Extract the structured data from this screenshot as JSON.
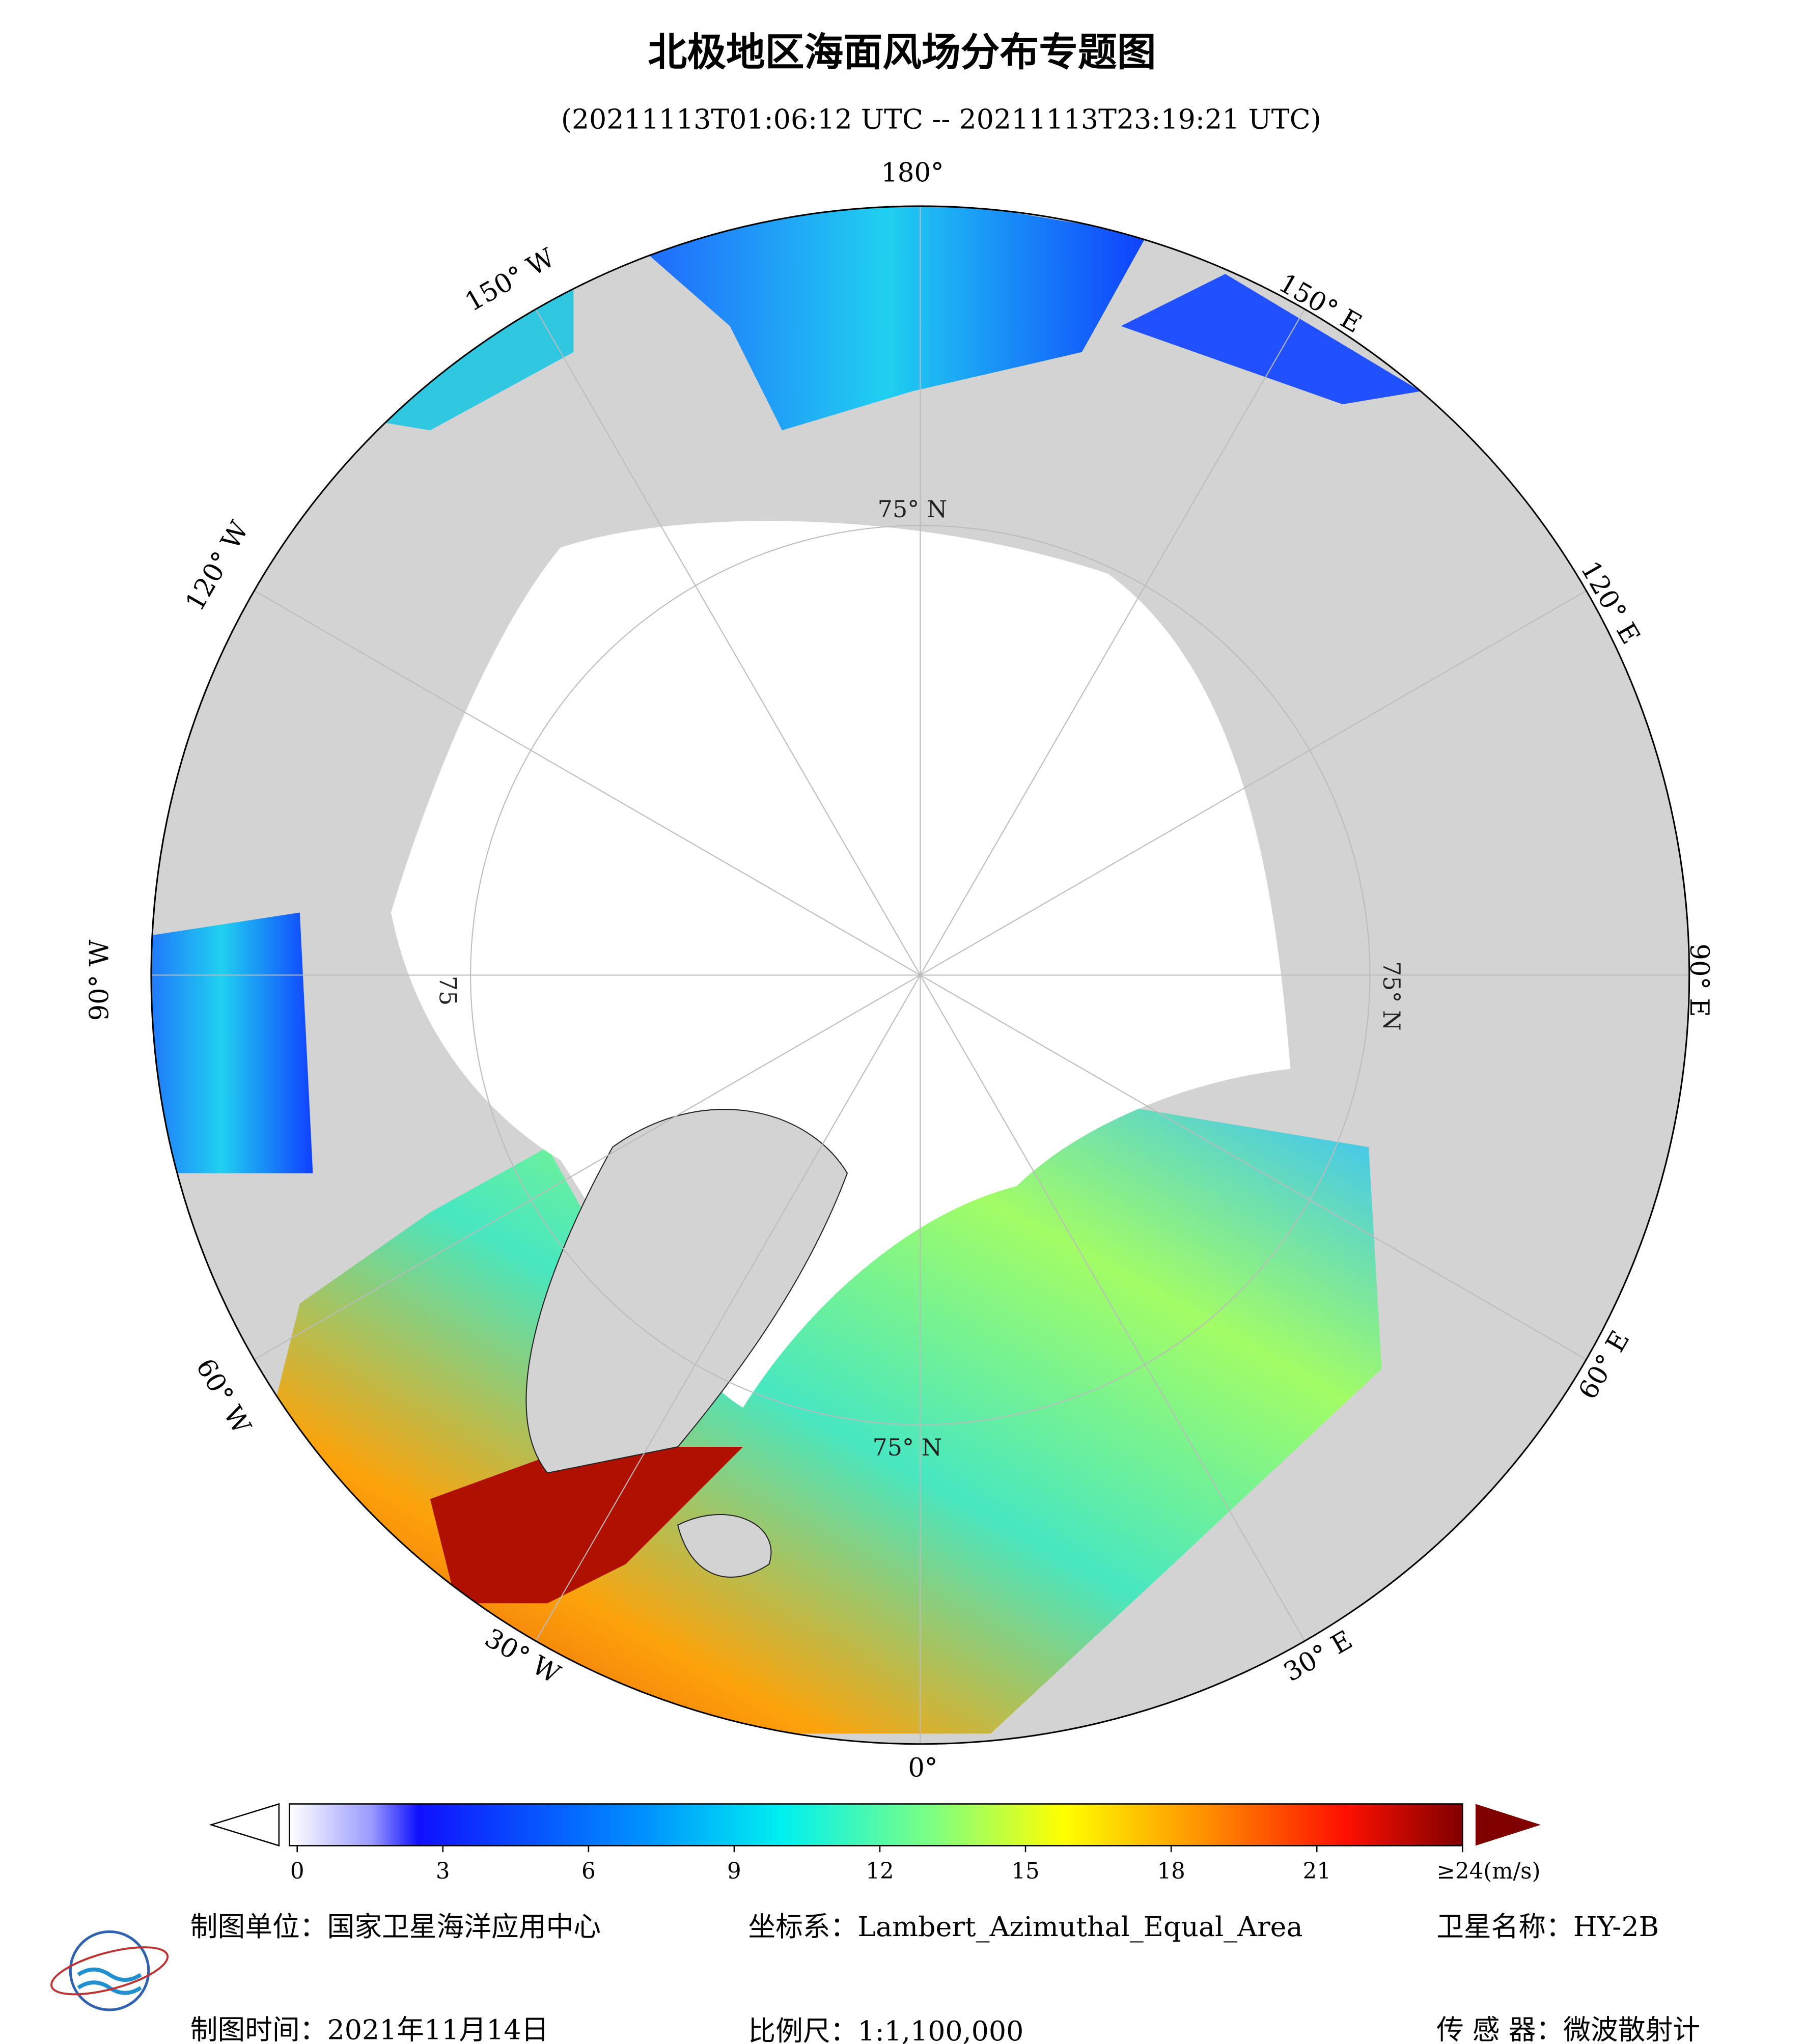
{
  "header": {
    "title": "北极地区海面风场分布专题图",
    "subtitle": "(20211113T01:06:12 UTC -- 20211113T23:19:21 UTC)"
  },
  "map": {
    "longitude_labels": [
      "180°",
      "150° E",
      "120° E",
      "90° E",
      "60° E",
      "30° E",
      "0°",
      "30° W",
      "60° W",
      "90° W",
      "120° W",
      "150° W"
    ],
    "latitude_labels": [
      "75° N",
      "75° N",
      "75° N",
      "75"
    ]
  },
  "colorbar": {
    "lim": [
      0,
      24
    ],
    "ticks": [
      0,
      3,
      6,
      9,
      12,
      15,
      18,
      21,
      {
        "value": 24,
        "label": "≥24(m/s)"
      }
    ]
  },
  "footer": {
    "unit": "制图单位：国家卫星海洋应用中心",
    "projection": "坐标系：Lambert_Azimuthal_Equal_Area",
    "satellite": "卫星名称：HY-2B",
    "date": "制图时间：2021年11月14日",
    "scale": "比例尺：1:1,100,000",
    "sensor": "传 感 器：微波散射计"
  }
}
